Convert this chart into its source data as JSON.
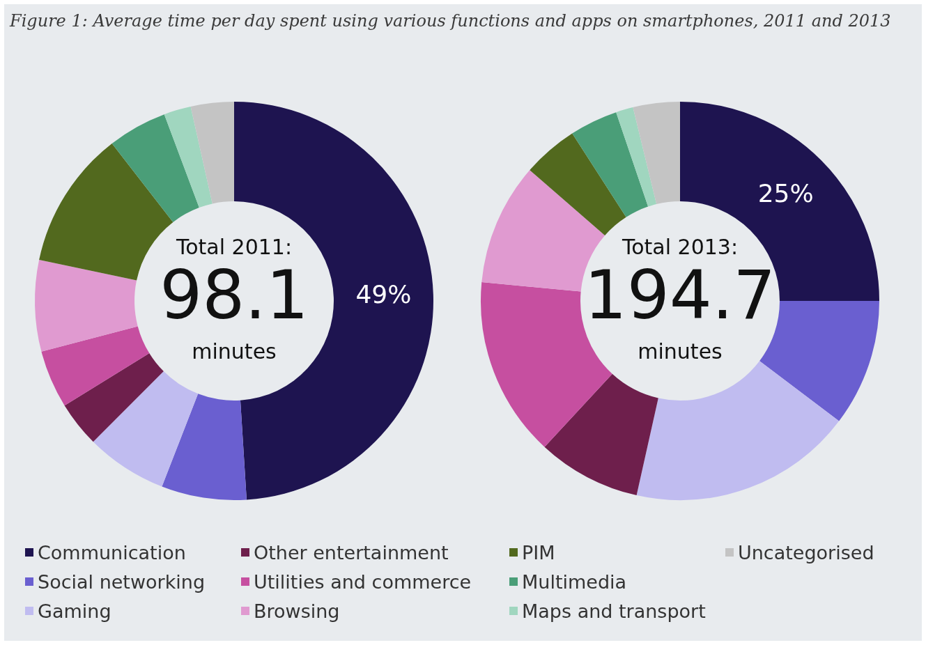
{
  "chart_data": [
    {
      "type": "donut",
      "title": "Figure 1: Average time per day spent using various functions and apps on smartphones, 2011 and 2013",
      "categories": [
        "Communication",
        "Social networking",
        "Gaming",
        "Other entertainment",
        "Utilities and commerce",
        "Browsing",
        "PIM",
        "Multimedia",
        "Maps and transport",
        "Uncategorised"
      ],
      "values": [
        49,
        6.9,
        6.6,
        3.7,
        4.7,
        7.4,
        11.2,
        4.8,
        2.2,
        3.5
      ],
      "value_labels": [
        "49%",
        null,
        null,
        null,
        null,
        null,
        null,
        null,
        null,
        null
      ],
      "colors": [
        "#1e1450",
        "#6a5fd0",
        "#c0bcf0",
        "#6e1f4c",
        "#c64fa0",
        "#e09ad0",
        "#52691e",
        "#4a9e78",
        "#a0d6bf",
        "#c4c4c4"
      ],
      "annotations": [
        "Total 2011:",
        "98.1",
        "minutes"
      ],
      "legend": "bottom"
    },
    {
      "type": "donut",
      "categories": [
        null,
        null,
        null,
        null,
        null,
        null,
        null,
        null,
        null,
        null
      ],
      "values": [
        25,
        10.3,
        18.2,
        8.4,
        14.6,
        9.9,
        4.5,
        3.9,
        1.4,
        3.8
      ],
      "value_labels": [
        "25%",
        null,
        null,
        null,
        null,
        null,
        null,
        null,
        null,
        null
      ],
      "colors": [
        "#1e1450",
        "#6a5fd0",
        "#c0bcf0",
        "#6e1f4c",
        "#c64fa0",
        "#e09ad0",
        "#52691e",
        "#4a9e78",
        "#a0d6bf",
        "#c4c4c4"
      ],
      "annotations": [
        "Total 2013:",
        "194.7",
        "minutes"
      ],
      "legend": false
    }
  ]
}
